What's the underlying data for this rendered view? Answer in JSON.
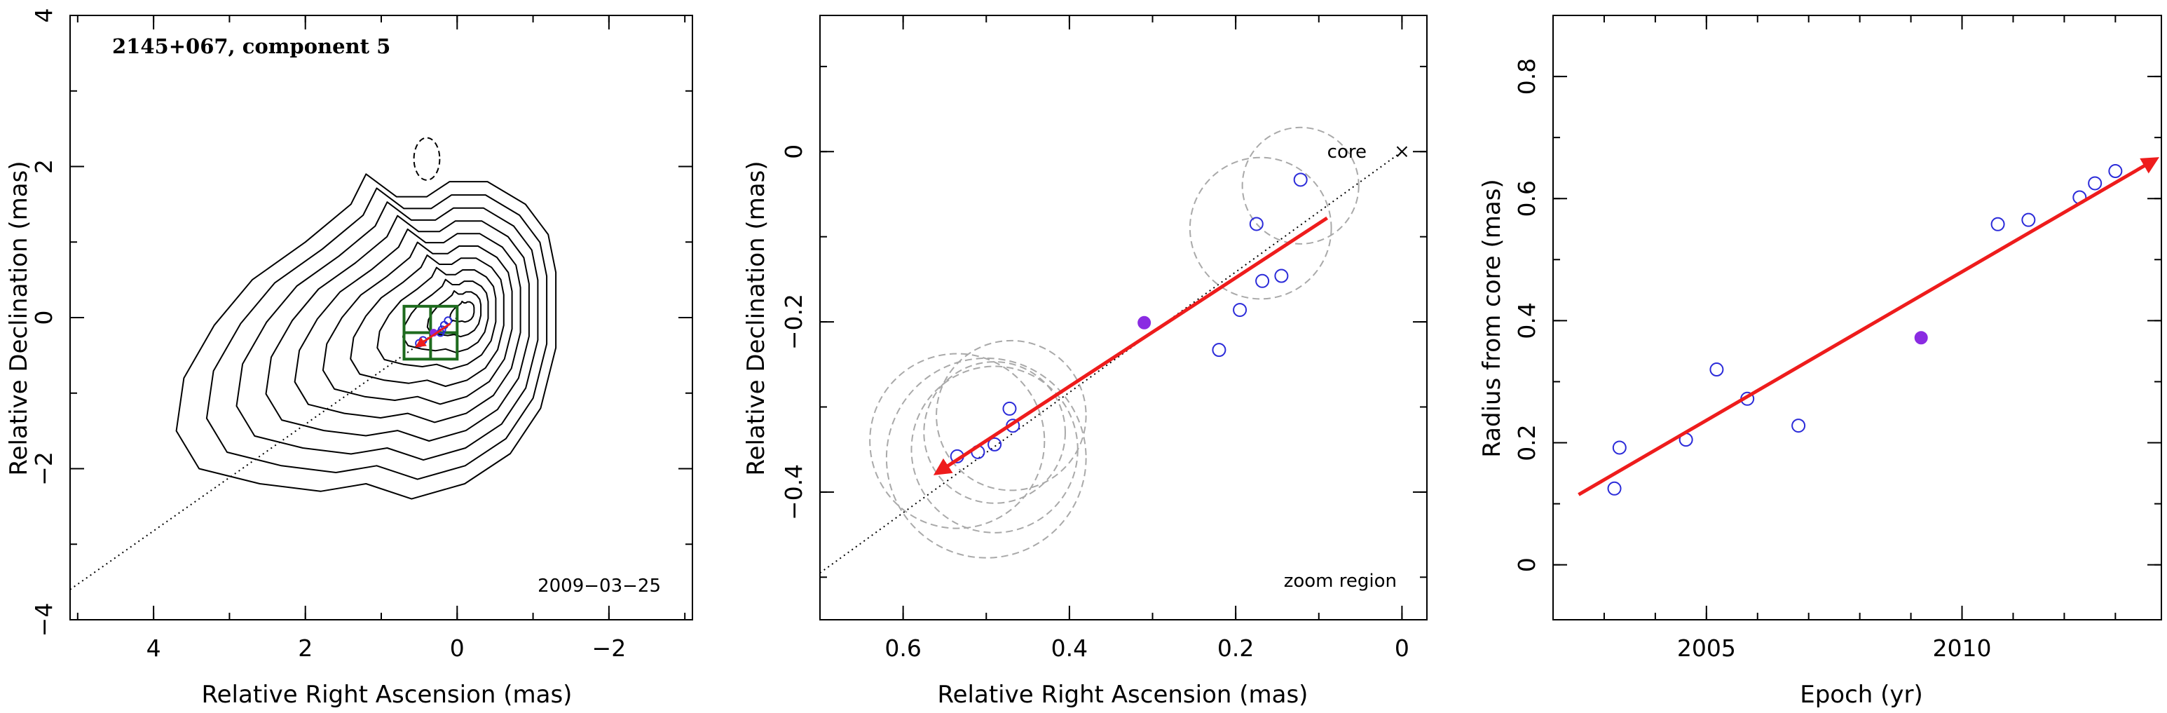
{
  "colors": {
    "fit_line": "#ee1c1c",
    "points": "#2b2bd9",
    "highlight_point": "#8a2be2",
    "contours": "#000000",
    "zoom_box": "#1e6b1e",
    "error_circles": "#a9a9a9"
  },
  "chart_data": [
    {
      "type": "contour",
      "title": "2145+067, component 5",
      "date_label": "2009−03−25",
      "xlabel": "Relative Right Ascension (mas)",
      "ylabel": "Relative Declination (mas)",
      "xlim": [
        5.1,
        -3.1
      ],
      "ylim": [
        -4,
        4
      ],
      "xticks": [
        4,
        2,
        0,
        -2
      ],
      "xtick_labels": [
        "4",
        "2",
        "0",
        "−2"
      ],
      "yticks": [
        -4,
        -2,
        0,
        2,
        4
      ],
      "ytick_labels": [
        "−4",
        "−2",
        "0",
        "2",
        "4"
      ],
      "contour_count": 11,
      "negative_contour": {
        "center": [
          0.4,
          2.1
        ],
        "rx": 0.17,
        "ry": 0.28
      },
      "zoom_region": {
        "x": [
          0.7,
          0.0
        ],
        "y": [
          -0.55,
          0.15
        ]
      },
      "trajectory_line": {
        "x": [
          5.1,
          0.0
        ],
        "y": [
          -3.6,
          0.0
        ]
      },
      "points": [
        {
          "x": 0.12,
          "y": -0.04
        },
        {
          "x": 0.17,
          "y": -0.1
        },
        {
          "x": 0.2,
          "y": -0.16
        },
        {
          "x": 0.22,
          "y": -0.2
        },
        {
          "x": 0.45,
          "y": -0.3
        },
        {
          "x": 0.5,
          "y": -0.34
        }
      ],
      "highlight_point": {
        "x": 0.31,
        "y": -0.2
      },
      "fit_arrow": {
        "x": [
          0.09,
          0.53
        ],
        "y": [
          -0.08,
          -0.38
        ]
      }
    },
    {
      "type": "scatter",
      "annotation_core": "core",
      "annotation_zoom": "zoom region",
      "xlabel": "Relative Right Ascension (mas)",
      "ylabel": "Relative Declination (mas)",
      "xlim": [
        0.7,
        -0.03
      ],
      "ylim": [
        -0.55,
        0.16
      ],
      "xticks": [
        0.6,
        0.4,
        0.2,
        0
      ],
      "xtick_labels": [
        "0.6",
        "0.4",
        "0.2",
        "0"
      ],
      "yticks": [
        -0.4,
        -0.2,
        0
      ],
      "ytick_labels": [
        "−0.4",
        "−0.2",
        "0"
      ],
      "trajectory_line": {
        "x": [
          0.7,
          0.0
        ],
        "y": [
          -0.495,
          0.0
        ]
      },
      "points": [
        {
          "x": 0.122,
          "y": -0.033
        },
        {
          "x": 0.175,
          "y": -0.085
        },
        {
          "x": 0.145,
          "y": -0.146
        },
        {
          "x": 0.168,
          "y": -0.152
        },
        {
          "x": 0.195,
          "y": -0.186
        },
        {
          "x": 0.22,
          "y": -0.233
        },
        {
          "x": 0.472,
          "y": -0.302
        },
        {
          "x": 0.468,
          "y": -0.322
        },
        {
          "x": 0.49,
          "y": -0.344
        },
        {
          "x": 0.51,
          "y": -0.353
        },
        {
          "x": 0.535,
          "y": -0.358
        }
      ],
      "highlight_point": {
        "x": 0.31,
        "y": -0.201
      },
      "error_circles": [
        {
          "x": 0.122,
          "y": -0.04,
          "r": 0.07
        },
        {
          "x": 0.17,
          "y": -0.09,
          "r": 0.085
        },
        {
          "x": 0.535,
          "y": -0.34,
          "r": 0.105
        },
        {
          "x": 0.47,
          "y": -0.31,
          "r": 0.09
        },
        {
          "x": 0.49,
          "y": -0.33,
          "r": 0.085
        },
        {
          "x": 0.5,
          "y": -0.36,
          "r": 0.12
        },
        {
          "x": 0.49,
          "y": -0.35,
          "r": 0.1
        }
      ],
      "fit_arrow": {
        "x": [
          0.09,
          0.56
        ],
        "y": [
          -0.078,
          -0.378
        ]
      }
    },
    {
      "type": "scatter",
      "xlabel": "Epoch (yr)",
      "ylabel": "Radius from core (mas)",
      "xlim": [
        2002.0,
        2013.9
      ],
      "ylim": [
        -0.09,
        0.9
      ],
      "xticks": [
        2005,
        2010
      ],
      "xtick_labels": [
        "2005",
        "2010"
      ],
      "yticks": [
        0,
        0.2,
        0.4,
        0.6,
        0.8
      ],
      "ytick_labels": [
        "0",
        "0.2",
        "0.4",
        "0.6",
        "0.8"
      ],
      "points": [
        {
          "x": 2003.2,
          "y": 0.125
        },
        {
          "x": 2003.3,
          "y": 0.192
        },
        {
          "x": 2004.6,
          "y": 0.205
        },
        {
          "x": 2005.2,
          "y": 0.32
        },
        {
          "x": 2005.8,
          "y": 0.272
        },
        {
          "x": 2006.8,
          "y": 0.228
        },
        {
          "x": 2010.7,
          "y": 0.558
        },
        {
          "x": 2011.3,
          "y": 0.565
        },
        {
          "x": 2012.3,
          "y": 0.602
        },
        {
          "x": 2012.6,
          "y": 0.625
        },
        {
          "x": 2013.0,
          "y": 0.645
        }
      ],
      "highlight_point": {
        "x": 2009.2,
        "y": 0.372
      },
      "fit_arrow": {
        "x": [
          2002.5,
          2013.8
        ],
        "y": [
          0.115,
          0.665
        ]
      }
    }
  ]
}
